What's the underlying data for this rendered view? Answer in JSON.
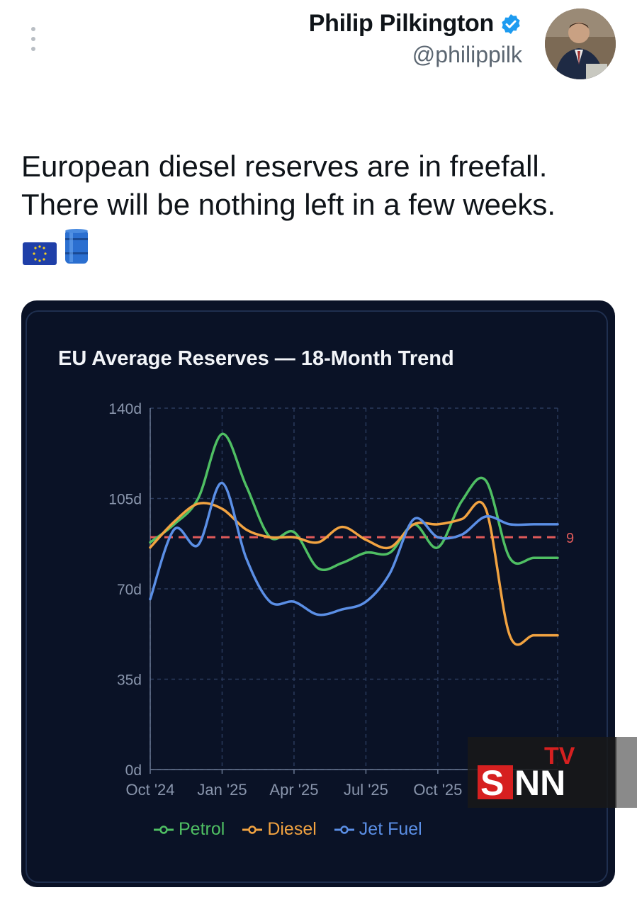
{
  "author": {
    "name": "Philip Pilkington",
    "handle": "@philippilk"
  },
  "tweet": {
    "line1": "European diesel reserves are in freefall.",
    "line2": "There will be nothing left in a few weeks."
  },
  "emojis": {
    "flag": "eu-flag-icon",
    "barrel": "oil-barrel-icon"
  },
  "colors": {
    "petrol": "#4fbf63",
    "diesel": "#f2a341",
    "jet": "#5b8fe6",
    "threshold": "#e05a5a",
    "card": "#0a1226"
  },
  "chart_data": {
    "type": "line",
    "title": "EU Average Reserves — 18-Month Trend",
    "y_ticks": [
      "0d",
      "35d",
      "70d",
      "105d",
      "140d"
    ],
    "ylim": [
      0,
      140
    ],
    "x_ticks": [
      "Oct '24",
      "Jan '25",
      "Apr '25",
      "Jul '25",
      "Oct '25"
    ],
    "x_months": [
      0,
      3,
      6,
      9,
      12
    ],
    "xlim": [
      0,
      17
    ],
    "threshold": {
      "value": 90,
      "label": "9"
    },
    "series": [
      {
        "name": "Petrol",
        "color": "#4fbf63",
        "x": [
          0,
          1,
          2,
          3,
          4,
          5,
          6,
          7,
          8,
          9,
          10,
          11,
          12,
          13,
          14,
          15,
          16,
          17
        ],
        "values": [
          88,
          95,
          105,
          130,
          110,
          90,
          92,
          78,
          80,
          84,
          84,
          95,
          86,
          104,
          112,
          82,
          82,
          82
        ]
      },
      {
        "name": "Diesel",
        "color": "#f2a341",
        "x": [
          0,
          1,
          2,
          3,
          4,
          5,
          6,
          7,
          8,
          9,
          10,
          11,
          12,
          13,
          14,
          15,
          16,
          17
        ],
        "values": [
          86,
          96,
          103,
          101,
          93,
          90,
          90,
          88,
          94,
          89,
          86,
          95,
          95,
          97,
          101,
          52,
          52,
          52
        ]
      },
      {
        "name": "Jet Fuel",
        "color": "#5b8fe6",
        "x": [
          0,
          1,
          2,
          3,
          4,
          5,
          6,
          7,
          8,
          9,
          10,
          11,
          12,
          13,
          14,
          15,
          16,
          17
        ],
        "values": [
          66,
          93,
          87,
          111,
          82,
          65,
          65,
          60,
          62,
          65,
          76,
          97,
          90,
          91,
          98,
          95,
          95,
          95
        ]
      }
    ]
  },
  "watermark": {
    "tv": "TV",
    "s": "S",
    "nn": "NN"
  }
}
